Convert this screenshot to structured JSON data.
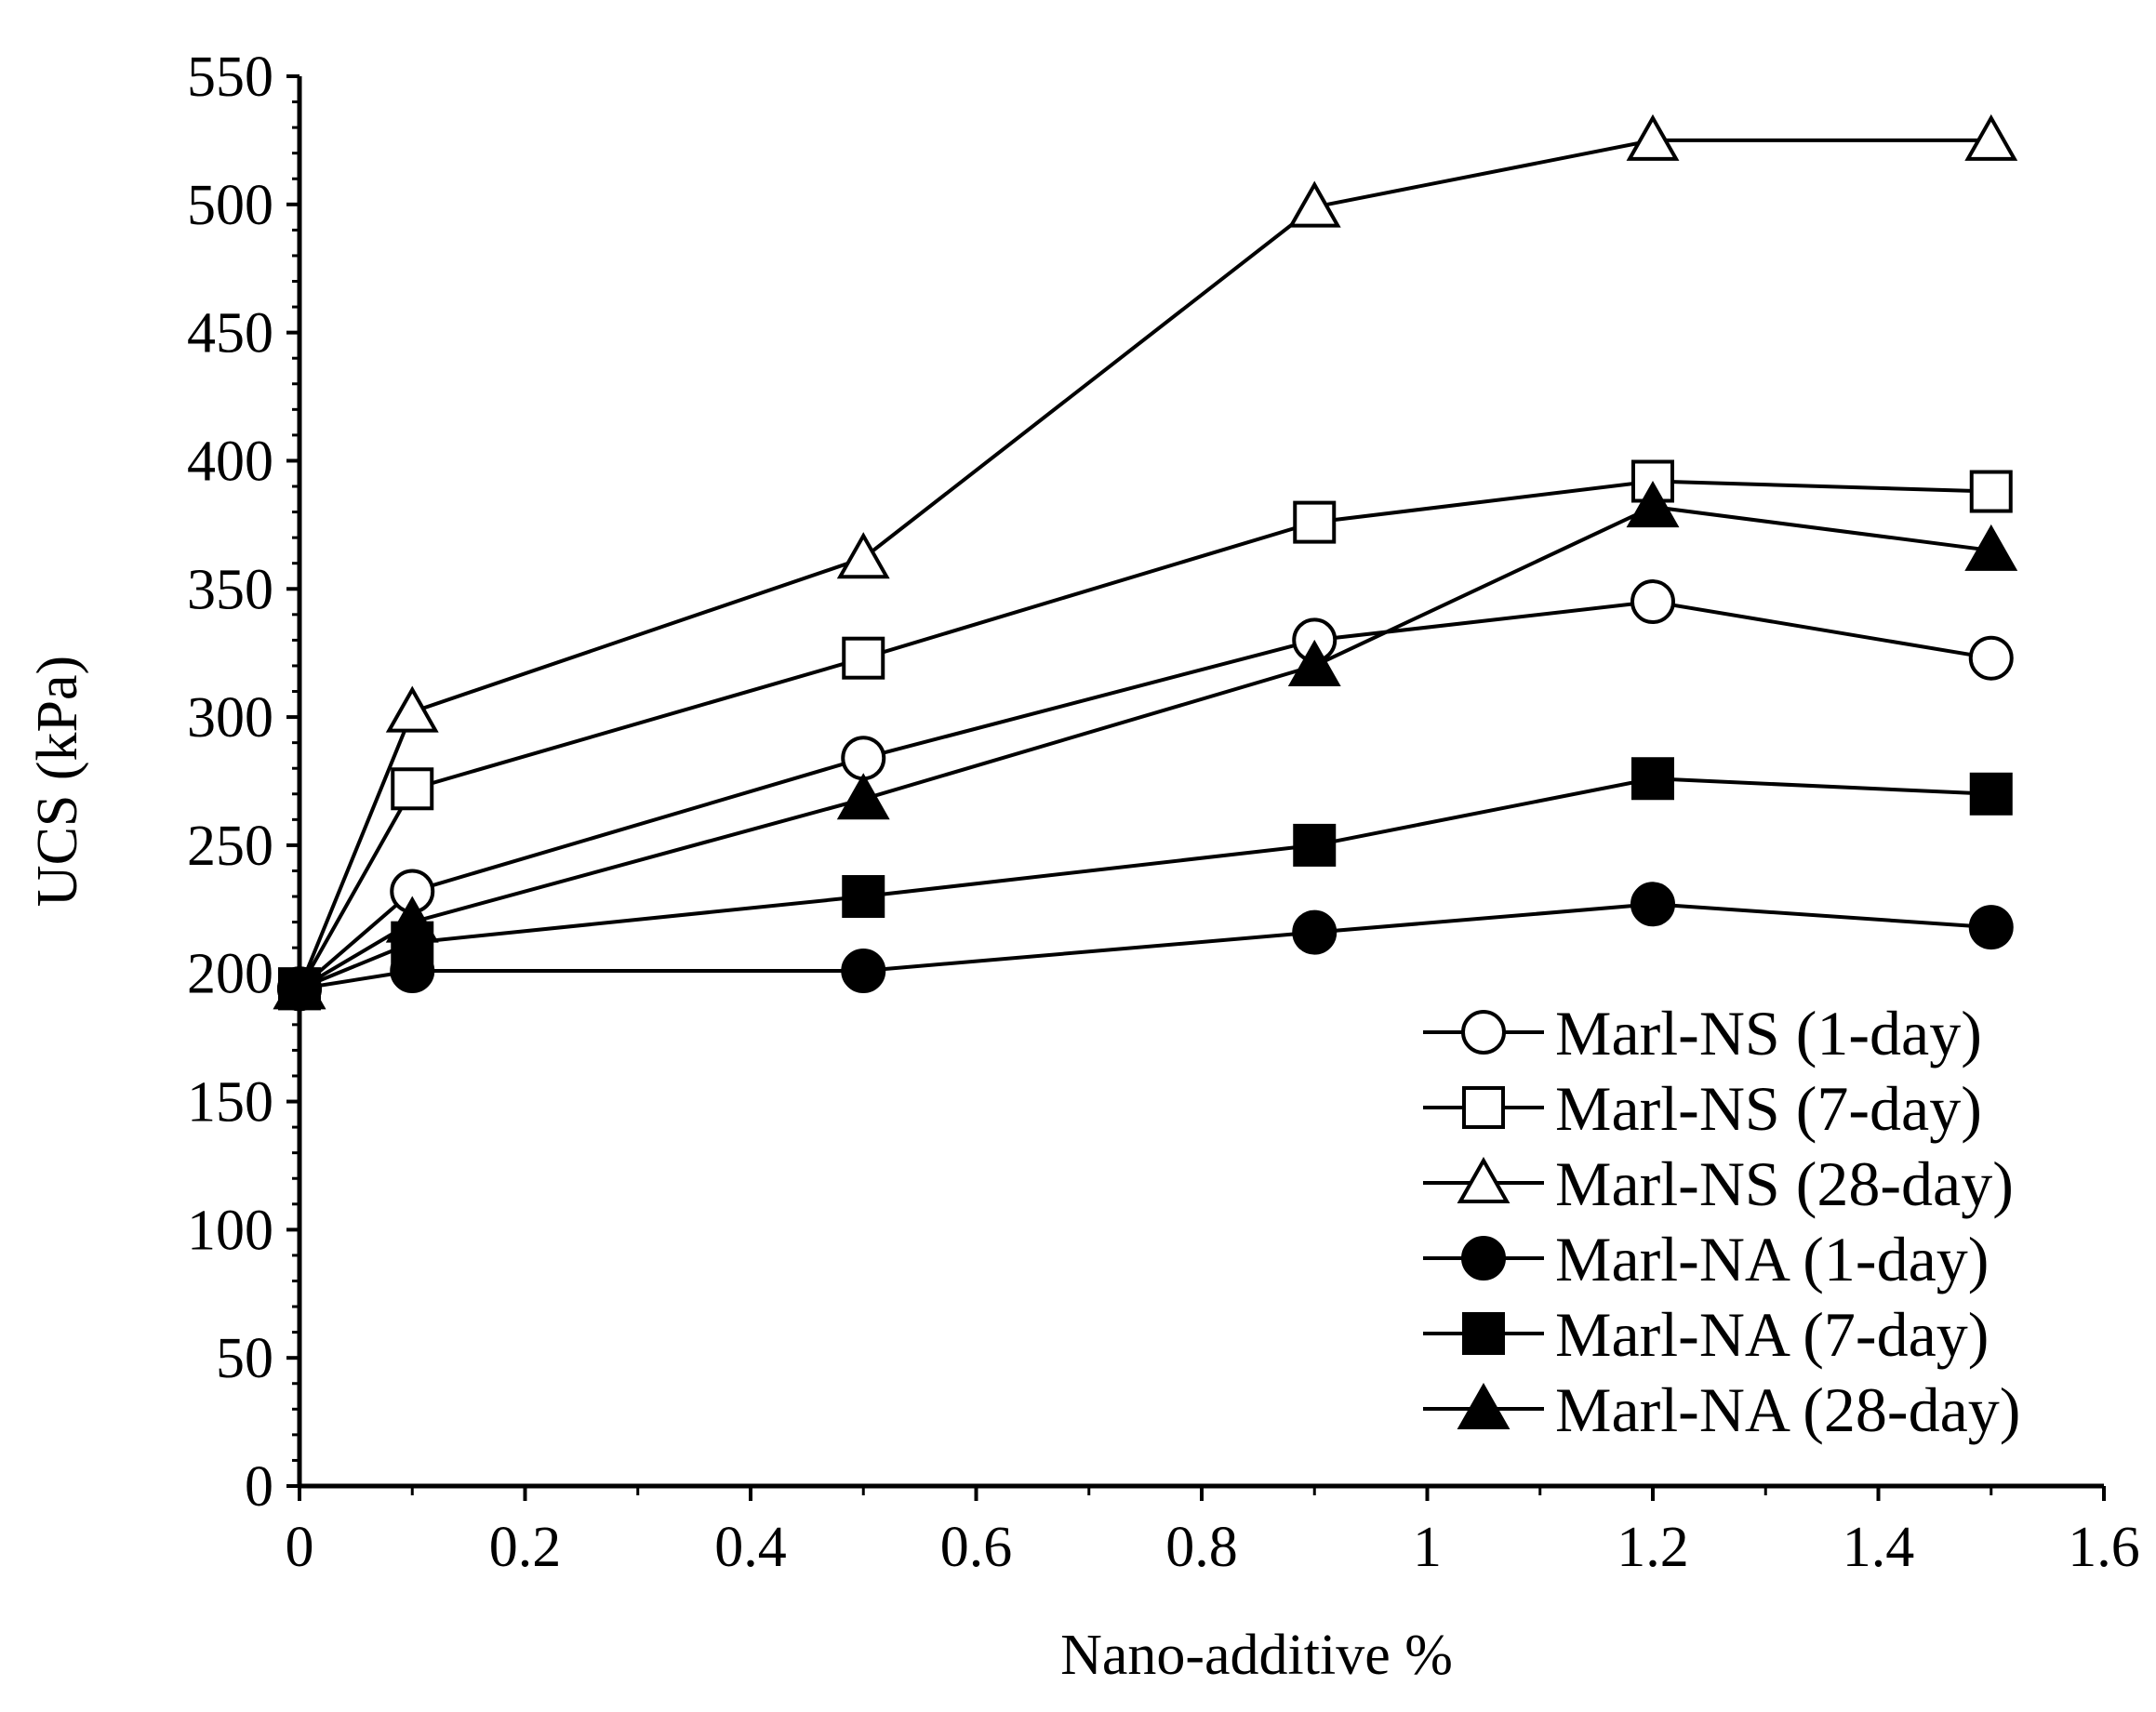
{
  "chart_data": {
    "type": "line",
    "title": "",
    "xlabel": "Nano-additive %",
    "ylabel": "UCS (kPa)",
    "xlim": [
      0,
      1.6
    ],
    "ylim": [
      0,
      550
    ],
    "x_ticks": [
      0,
      0.2,
      0.4,
      0.6,
      0.8,
      1,
      1.2,
      1.4,
      1.6
    ],
    "x_tick_labels": [
      "0",
      "0.2",
      "0.4",
      "0.6",
      "0.8",
      "1",
      "1.2",
      "1.4",
      "1.6"
    ],
    "y_ticks": [
      0,
      50,
      100,
      150,
      200,
      250,
      300,
      350,
      400,
      450,
      500,
      550
    ],
    "y_tick_labels": [
      "0",
      "50",
      "100",
      "150",
      "200",
      "250",
      "300",
      "350",
      "400",
      "450",
      "500",
      "550"
    ],
    "grid": false,
    "legend_position": "bottom-right",
    "x": [
      0,
      0.1,
      0.5,
      0.9,
      1.2,
      1.5
    ],
    "series": [
      {
        "name": "Marl-NS (1-day)",
        "marker": "circle",
        "filled": false,
        "values": [
          194,
          232,
          284,
          330,
          345,
          323
        ]
      },
      {
        "name": "Marl-NS (7-day)",
        "marker": "square",
        "filled": false,
        "values": [
          194,
          272,
          323,
          376,
          392,
          388
        ]
      },
      {
        "name": "Marl-NS (28-day)",
        "marker": "triangle",
        "filled": false,
        "values": [
          194,
          302,
          362,
          499,
          525,
          525
        ]
      },
      {
        "name": "Marl-NA (1-day)",
        "marker": "circle",
        "filled": true,
        "values": [
          194,
          201,
          201,
          216,
          227,
          218
        ]
      },
      {
        "name": "Marl-NA (7-day)",
        "marker": "square",
        "filled": true,
        "values": [
          194,
          212,
          230,
          250,
          276,
          270
        ]
      },
      {
        "name": "Marl-NA (28-day)",
        "marker": "triangle",
        "filled": true,
        "values": [
          194,
          220,
          268,
          320,
          382,
          365
        ]
      }
    ]
  },
  "colors": {
    "line": "#000000",
    "background": "#ffffff"
  }
}
